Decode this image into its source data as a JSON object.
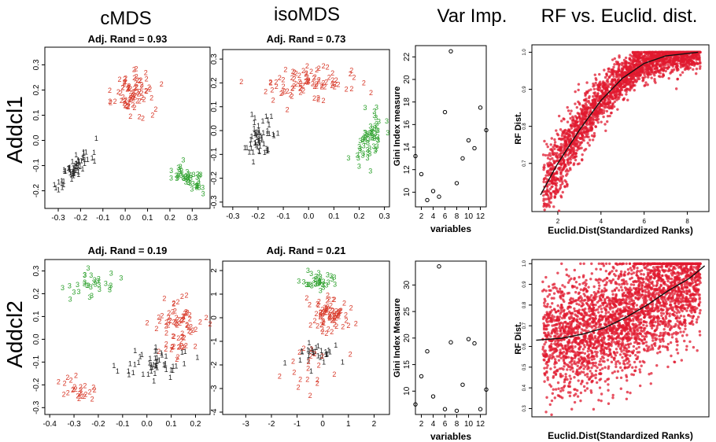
{
  "figure": {
    "column_titles": [
      "cMDS",
      "isoMDS",
      "Var Imp.",
      "RF vs. Euclid. dist."
    ],
    "row_labels": [
      "Addcl1",
      "Addcl2"
    ]
  },
  "colors": {
    "cluster1": "#222222",
    "cluster2": "#d83a2a",
    "cluster3": "#2ea12e",
    "rf_points": "#e0192f",
    "curve": "#111111"
  },
  "chart_data": [
    {
      "id": "cmds-addcl1",
      "type": "scatter",
      "title": "Adj. Rand = 0.93",
      "xlabel": "",
      "ylabel": "",
      "xlim": [
        -0.36,
        0.38
      ],
      "ylim": [
        -0.27,
        0.37
      ],
      "xticks": [
        -0.3,
        -0.2,
        -0.1,
        0.0,
        0.1,
        0.2,
        0.3
      ],
      "xtick_labels": [
        "-0.3",
        "-0.2",
        "-0.1",
        "0.0",
        "0.1",
        "0.2",
        "0.3"
      ],
      "yticks": [
        -0.2,
        -0.1,
        0.0,
        0.1,
        0.2,
        0.3
      ],
      "ytick_labels": [
        "-0.2",
        "-0.1",
        "0.0",
        "0.1",
        "0.2",
        "0.3"
      ],
      "markers": "cluster labels",
      "clusters": [
        {
          "label": "1",
          "n": 60,
          "center": [
            -0.23,
            -0.12
          ],
          "spread": [
            0.07,
            0.07
          ],
          "corr": 0.85
        },
        {
          "label": "2",
          "n": 80,
          "center": [
            0.03,
            0.19
          ],
          "spread": [
            0.09,
            0.07
          ],
          "corr": 0.1
        },
        {
          "label": "3",
          "n": 50,
          "center": [
            0.28,
            -0.15
          ],
          "spread": [
            0.06,
            0.05
          ],
          "corr": -0.6
        }
      ]
    },
    {
      "id": "isomds-addcl1",
      "type": "scatter",
      "title": "Adj. Rand = 0.73",
      "xlabel": "",
      "ylabel": "",
      "xlim": [
        -0.34,
        0.32
      ],
      "ylim": [
        -0.32,
        0.34
      ],
      "xticks": [
        -0.3,
        -0.2,
        -0.1,
        0.0,
        0.1,
        0.2,
        0.3
      ],
      "xtick_labels": [
        "-0.3",
        "-0.2",
        "-0.1",
        "0.0",
        "0.1",
        "0.2",
        "0.3"
      ],
      "yticks": [
        -0.3,
        -0.2,
        -0.1,
        0.0,
        0.1,
        0.2,
        0.3
      ],
      "ytick_labels": [
        "-0.3",
        "-0.2",
        "-0.1",
        "0.0",
        "0.1",
        "0.2",
        "0.3"
      ],
      "markers": "cluster labels",
      "clusters": [
        {
          "label": "1",
          "n": 55,
          "center": [
            -0.2,
            -0.03
          ],
          "spread": [
            0.05,
            0.07
          ],
          "corr": 0.3
        },
        {
          "label": "2",
          "n": 85,
          "center": [
            0.0,
            0.2
          ],
          "spread": [
            0.15,
            0.06
          ],
          "corr": 0.0
        },
        {
          "label": "3",
          "n": 60,
          "center": [
            0.24,
            -0.04
          ],
          "spread": [
            0.05,
            0.1
          ],
          "corr": 0.5
        }
      ]
    },
    {
      "id": "varimp-addcl1",
      "type": "scatter",
      "title": "",
      "xlabel": "variables",
      "ylabel": "Gini Index measure",
      "xlim": [
        1,
        13
      ],
      "ylim": [
        8.7,
        23
      ],
      "xticks": [
        2,
        4,
        6,
        8,
        10,
        12
      ],
      "xtick_labels": [
        "2",
        "4",
        "6",
        "8",
        "10",
        "12"
      ],
      "yticks": [
        10,
        12,
        14,
        16,
        18,
        20,
        22
      ],
      "ytick_labels": [
        "10",
        "12",
        "14",
        "16",
        "18",
        "20",
        "22"
      ],
      "x": [
        1,
        2,
        3,
        4,
        5,
        6,
        7,
        8,
        9,
        10,
        11,
        12,
        13
      ],
      "y": [
        13.2,
        11.6,
        9.3,
        10.1,
        9.6,
        17.1,
        22.5,
        10.8,
        13.0,
        14.6,
        13.9,
        17.5,
        15.5
      ]
    },
    {
      "id": "rf-addcl1",
      "type": "scatter",
      "title": "",
      "xlabel": "Euclid.Dist(Standardized Ranks)",
      "ylabel": "RF Dist.",
      "xlim": [
        0.8,
        9.0
      ],
      "ylim": [
        0.57,
        1.02
      ],
      "xticks": [
        2,
        4,
        6,
        8
      ],
      "xtick_labels": [
        "2",
        "4",
        "6",
        "8"
      ],
      "yticks": [
        0.7,
        0.8,
        0.9,
        1.0
      ],
      "ytick_labels": [
        "0.7",
        "0.8",
        "0.9",
        "1.0"
      ],
      "n_points": 2500,
      "trend": [
        [
          1.2,
          0.615
        ],
        [
          2,
          0.7
        ],
        [
          3,
          0.79
        ],
        [
          4,
          0.87
        ],
        [
          5,
          0.93
        ],
        [
          6,
          0.97
        ],
        [
          7,
          0.99
        ],
        [
          8.5,
          1.0
        ]
      ]
    },
    {
      "id": "cmds-addcl2",
      "type": "scatter",
      "title": "Adj. Rand = 0.19",
      "xlabel": "",
      "ylabel": "",
      "xlim": [
        -0.42,
        0.26
      ],
      "ylim": [
        -0.33,
        0.35
      ],
      "xticks": [
        -0.4,
        -0.3,
        -0.2,
        -0.1,
        0.0,
        0.1,
        0.2
      ],
      "xtick_labels": [
        "-0.4",
        "-0.3",
        "-0.2",
        "-0.1",
        "0.0",
        "0.1",
        "0.2"
      ],
      "yticks": [
        -0.3,
        -0.2,
        -0.1,
        0.0,
        0.1,
        0.2,
        0.3
      ],
      "ytick_labels": [
        "-0.3",
        "-0.2",
        "-0.1",
        "0.0",
        "0.1",
        "0.2",
        "0.3"
      ],
      "markers": "cluster labels",
      "clusters": [
        {
          "label": "3",
          "n": 30,
          "center": [
            -0.22,
            0.24
          ],
          "spread": [
            0.09,
            0.06
          ],
          "corr": 0.0
        },
        {
          "label": "2",
          "n": 75,
          "center": [
            0.13,
            0.05
          ],
          "spread": [
            0.08,
            0.1
          ],
          "corr": 0.0
        },
        {
          "label": "1",
          "n": 50,
          "center": [
            0.03,
            -0.1
          ],
          "spread": [
            0.12,
            0.07
          ],
          "corr": 0.0
        },
        {
          "label": "2",
          "n": 25,
          "center": [
            -0.27,
            -0.22
          ],
          "spread": [
            0.08,
            0.06
          ],
          "corr": 0.0
        }
      ]
    },
    {
      "id": "isomds-addcl2",
      "type": "scatter",
      "title": "Adj. Rand = 0.21",
      "xlabel": "",
      "ylabel": "",
      "xlim": [
        -3.9,
        2.6
      ],
      "ylim": [
        -4.1,
        2.4
      ],
      "xticks": [
        -3,
        -2,
        -1,
        0,
        1,
        2
      ],
      "xtick_labels": [
        "-3",
        "-2",
        "-1",
        "0",
        "1",
        "2"
      ],
      "yticks": [
        -4,
        -3,
        -2,
        -1,
        0,
        1,
        2
      ],
      "ytick_labels": [
        "-4",
        "-3",
        "-2",
        "-1",
        "0",
        "1",
        "2"
      ],
      "markers": "cluster labels",
      "clusters": [
        {
          "label": "3",
          "n": 35,
          "center": [
            -0.1,
            1.5
          ],
          "spread": [
            0.7,
            0.4
          ],
          "corr": 0.0
        },
        {
          "label": "2",
          "n": 80,
          "center": [
            0.3,
            0.1
          ],
          "spread": [
            0.7,
            0.6
          ],
          "corr": 0.0
        },
        {
          "label": "1",
          "n": 30,
          "center": [
            -0.3,
            -1.5
          ],
          "spread": [
            0.9,
            0.7
          ],
          "corr": 0.0
        },
        {
          "label": "2",
          "n": 20,
          "center": [
            -0.5,
            -2.2
          ],
          "spread": [
            1.2,
            1.0
          ],
          "corr": 0.0
        }
      ]
    },
    {
      "id": "varimp-addcl2",
      "type": "scatter",
      "title": "",
      "xlabel": "variables",
      "ylabel": "Gini Index Measure",
      "xlim": [
        1,
        13
      ],
      "ylim": [
        5.6,
        34.5
      ],
      "xticks": [
        2,
        4,
        6,
        8,
        10,
        12
      ],
      "xtick_labels": [
        "2",
        "4",
        "6",
        "8",
        "10",
        "12"
      ],
      "yticks": [
        10,
        15,
        20,
        25,
        30
      ],
      "ytick_labels": [
        "10",
        "15",
        "20",
        "25",
        "30"
      ],
      "x": [
        1,
        2,
        3,
        4,
        5,
        6,
        7,
        8,
        9,
        10,
        11,
        12,
        13
      ],
      "y": [
        7.5,
        12.8,
        17.5,
        9.0,
        33.5,
        6.6,
        19.2,
        6.3,
        11.2,
        19.8,
        19.0,
        6.6,
        10.3
      ]
    },
    {
      "id": "rf-addcl2",
      "type": "scatter",
      "title": "",
      "xlabel": "Euclid.Dist(Standardized Ranks)",
      "ylabel": "RF Dist.",
      "xlim": [
        0.6,
        8.9
      ],
      "ylim": [
        0.26,
        1.02
      ],
      "xticks": [],
      "xtick_labels": [],
      "yticks": [
        0.3,
        0.4,
        0.5,
        0.6,
        0.7,
        0.8,
        0.9,
        1.0
      ],
      "ytick_labels": [
        "0.3",
        "0.4",
        "0.5",
        "0.6",
        "0.7",
        "0.8",
        "0.9",
        "1.0"
      ],
      "n_points": 3000,
      "trend": [
        [
          0.8,
          0.63
        ],
        [
          2,
          0.64
        ],
        [
          3,
          0.66
        ],
        [
          4,
          0.69
        ],
        [
          5,
          0.74
        ],
        [
          6,
          0.8
        ],
        [
          7,
          0.87
        ],
        [
          8,
          0.93
        ],
        [
          8.7,
          0.99
        ]
      ]
    }
  ]
}
